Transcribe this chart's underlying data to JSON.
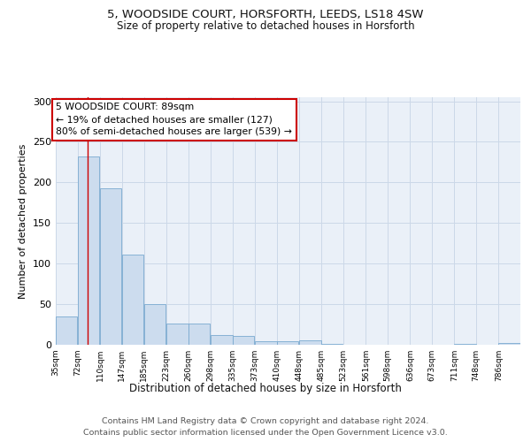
{
  "title_line1": "5, WOODSIDE COURT, HORSFORTH, LEEDS, LS18 4SW",
  "title_line2": "Size of property relative to detached houses in Horsforth",
  "xlabel": "Distribution of detached houses by size in Horsforth",
  "ylabel": "Number of detached properties",
  "bar_color": "#ccdcee",
  "bar_edge_color": "#7aaad0",
  "bar_edge_width": 0.6,
  "property_line_x": 89,
  "property_line_color": "#cc0000",
  "annotation_text": "5 WOODSIDE COURT: 89sqm\n← 19% of detached houses are smaller (127)\n80% of semi-detached houses are larger (539) →",
  "annotation_box_color": "#ffffff",
  "annotation_box_edge_color": "#cc0000",
  "bin_edges": [
    35,
    72,
    110,
    147,
    185,
    223,
    260,
    298,
    335,
    373,
    410,
    448,
    485,
    523,
    561,
    598,
    636,
    673,
    711,
    748,
    786
  ],
  "bar_heights": [
    35,
    232,
    193,
    111,
    50,
    26,
    26,
    12,
    11,
    4,
    4,
    5,
    1,
    0,
    0,
    0,
    0,
    0,
    1,
    0,
    2
  ],
  "tick_labels": [
    "35sqm",
    "72sqm",
    "110sqm",
    "147sqm",
    "185sqm",
    "223sqm",
    "260sqm",
    "298sqm",
    "335sqm",
    "373sqm",
    "410sqm",
    "448sqm",
    "485sqm",
    "523sqm",
    "561sqm",
    "598sqm",
    "636sqm",
    "673sqm",
    "711sqm",
    "748sqm",
    "786sqm"
  ],
  "ylim": [
    0,
    305
  ],
  "yticks": [
    0,
    50,
    100,
    150,
    200,
    250,
    300
  ],
  "grid_color": "#ccd8e8",
  "background_color": "#eaf0f8",
  "footer_line1": "Contains HM Land Registry data © Crown copyright and database right 2024.",
  "footer_line2": "Contains public sector information licensed under the Open Government Licence v3.0.",
  "title_fontsize": 9.5,
  "subtitle_fontsize": 8.5,
  "ylabel_fontsize": 8,
  "xlabel_fontsize": 8.5,
  "tick_fontsize": 6.5,
  "ytick_fontsize": 8,
  "annotation_fontsize": 7.8,
  "footer_fontsize": 6.8
}
